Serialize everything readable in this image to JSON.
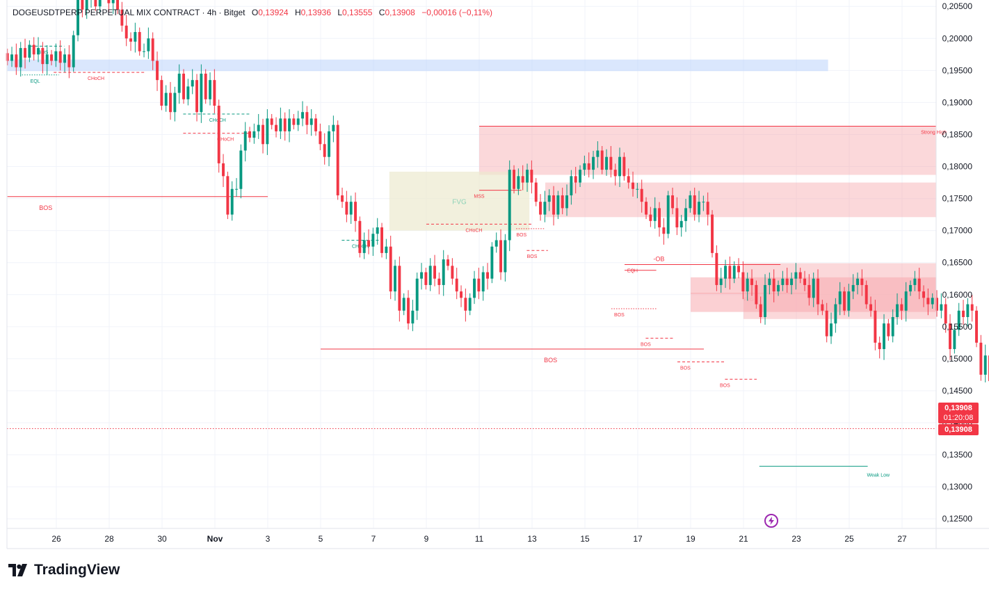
{
  "legend": {
    "symbol": "DOGEUSDTPERP PERPETUAL MIX CONTRACT · 4h · Bitget",
    "o_label": "O",
    "o": "0,13924",
    "h_label": "H",
    "h": "0,13936",
    "l_label": "L",
    "l": "0,13555",
    "c_label": "C",
    "c": "0,13908",
    "change": "−0,00016 (−0,11%)"
  },
  "price_tag": {
    "price": "0,13908",
    "countdown": "01:20:08",
    "price2": "0,13908"
  },
  "brand": {
    "name": "TradingView"
  },
  "colors": {
    "up": "#089981",
    "down": "#f23645",
    "grid": "#f0f3fa",
    "supply": "#f7a9ae",
    "fvg": "#ede9cf",
    "demand": "#bbd4fb"
  },
  "chart_data": {
    "type": "candlestick",
    "interval": "4h",
    "ylim": [
      0.1235,
      0.206
    ],
    "y_ticks": [
      "0,12500",
      "0,13000",
      "0,13500",
      "0,14000",
      "0,14500",
      "0,15000",
      "0,15500",
      "0,16000",
      "0,16500",
      "0,17000",
      "0,17500",
      "0,18000",
      "0,18500",
      "0,19000",
      "0,19500",
      "0,20000",
      "0,20500"
    ],
    "y_tick_values": [
      0.125,
      0.13,
      0.135,
      0.14,
      0.145,
      0.15,
      0.155,
      0.16,
      0.165,
      0.17,
      0.175,
      0.18,
      0.185,
      0.19,
      0.195,
      0.2,
      0.205
    ],
    "x_ticks": [
      {
        "label": "26",
        "day": 0
      },
      {
        "label": "28",
        "day": 2
      },
      {
        "label": "30",
        "day": 4
      },
      {
        "label": "Nov",
        "day": 6
      },
      {
        "label": "3",
        "day": 8
      },
      {
        "label": "5",
        "day": 10
      },
      {
        "label": "7",
        "day": 12
      },
      {
        "label": "9",
        "day": 14
      },
      {
        "label": "11",
        "day": 16
      },
      {
        "label": "13",
        "day": 18
      },
      {
        "label": "15",
        "day": 20
      },
      {
        "label": "17",
        "day": 22
      },
      {
        "label": "19",
        "day": 24
      },
      {
        "label": "21",
        "day": 26
      },
      {
        "label": "23",
        "day": 28
      },
      {
        "label": "25",
        "day": 30
      },
      {
        "label": "27",
        "day": 32
      }
    ],
    "start_day": -1.85,
    "candles_per_day": 6,
    "closes": [
      0.1965,
      0.1975,
      0.1955,
      0.1985,
      0.197,
      0.199,
      0.1975,
      0.1985,
      0.196,
      0.1975,
      0.1965,
      0.198,
      0.1962,
      0.1975,
      0.1955,
      0.2005,
      0.2065,
      0.2045,
      0.2065,
      0.2115,
      0.205,
      0.2095,
      0.2075,
      0.2055,
      0.2095,
      0.2045,
      0.202,
      0.2,
      0.1995,
      0.201,
      0.198,
      0.198,
      0.2,
      0.1965,
      0.1935,
      0.1895,
      0.1915,
      0.1885,
      0.1915,
      0.1945,
      0.1905,
      0.1925,
      0.1935,
      0.1885,
      0.1945,
      0.1905,
      0.1935,
      0.1895,
      0.1805,
      0.1785,
      0.1725,
      0.1765,
      0.1765,
      0.1825,
      0.1855,
      0.1845,
      0.1855,
      0.1865,
      0.1835,
      0.1875,
      0.1865,
      0.1855,
      0.1875,
      0.1855,
      0.1875,
      0.1865,
      0.1875,
      0.1885,
      0.1865,
      0.1875,
      0.1855,
      0.1835,
      0.1815,
      0.1855,
      0.1865,
      0.1755,
      0.1745,
      0.1725,
      0.1745,
      0.1715,
      0.1665,
      0.1685,
      0.1675,
      0.1695,
      0.1705,
      0.1665,
      0.1675,
      0.1605,
      0.1645,
      0.1575,
      0.1595,
      0.1555,
      0.1575,
      0.1625,
      0.1635,
      0.1615,
      0.1645,
      0.1625,
      0.1615,
      0.1655,
      0.1645,
      0.1625,
      0.1605,
      0.1595,
      0.1575,
      0.1595,
      0.1625,
      0.1605,
      0.1635,
      0.1625,
      0.1675,
      0.1685,
      0.1635,
      0.1685,
      0.1795,
      0.1765,
      0.1785,
      0.1775,
      0.1795,
      0.1775,
      0.1745,
      0.1725,
      0.1745,
      0.1755,
      0.1725,
      0.1755,
      0.1735,
      0.1755,
      0.1785,
      0.1775,
      0.1795,
      0.1805,
      0.1795,
      0.1815,
      0.1825,
      0.1795,
      0.1815,
      0.1795,
      0.1785,
      0.1815,
      0.1785,
      0.1775,
      0.1765,
      0.1765,
      0.1745,
      0.1725,
      0.1715,
      0.1735,
      0.1705,
      0.1695,
      0.1755,
      0.1735,
      0.1705,
      0.1715,
      0.1735,
      0.1755,
      0.1725,
      0.1745,
      0.1745,
      0.1725,
      0.1665,
      0.1615,
      0.1625,
      0.1645,
      0.1625,
      0.1645,
      0.1635,
      0.1605,
      0.1625,
      0.1615,
      0.1585,
      0.1565,
      0.1615,
      0.1625,
      0.1605,
      0.1615,
      0.1625,
      0.1615,
      0.1625,
      0.1635,
      0.1625,
      0.1615,
      0.1595,
      0.1625,
      0.1585,
      0.1575,
      0.1535,
      0.1555,
      0.1585,
      0.1605,
      0.1575,
      0.1605,
      0.1615,
      0.1625,
      0.1615,
      0.1585,
      0.1575,
      0.1525,
      0.1515,
      0.1555,
      0.1535,
      0.1565,
      0.1585,
      0.1575,
      0.1605,
      0.1615,
      0.1625,
      0.1605,
      0.1595,
      0.1585,
      0.1595,
      0.1575,
      0.1585,
      0.1555,
      0.1515,
      0.1545,
      0.1575,
      0.1565,
      0.1585,
      0.1575,
      0.1525,
      0.1475,
      0.1505,
      0.1465,
      0.1425,
      0.1395,
      0.1375,
      0.1405,
      0.1375,
      0.1415,
      0.1385,
      0.1405,
      0.1385,
      0.13908
    ],
    "zones": [
      {
        "label": "",
        "x0_day": -1.85,
        "x1_day": 29.2,
        "y0": 0.1949,
        "y1": 0.1967,
        "kind": "demand"
      },
      {
        "label": "",
        "x0_day": 16.0,
        "x1_day": 35.2,
        "y0": 0.1787,
        "y1": 0.1863,
        "kind": "supply"
      },
      {
        "label": "",
        "x0_day": 18.5,
        "x1_day": 35.2,
        "y0": 0.1721,
        "y1": 0.1775,
        "kind": "supply"
      },
      {
        "label": "FVG",
        "x0_day": 12.6,
        "x1_day": 17.9,
        "y0": 0.17,
        "y1": 0.1792,
        "kind": "fvg"
      },
      {
        "label": "",
        "x0_day": 26.0,
        "x1_day": 35.2,
        "y0": 0.1562,
        "y1": 0.1649,
        "kind": "supply"
      },
      {
        "label": "",
        "x0_day": 24.0,
        "x1_day": 35.2,
        "y0": 0.1573,
        "y1": 0.1627,
        "kind": "supply_dark"
      }
    ],
    "levels": [
      {
        "label": "Strong High",
        "x0_day": 16.0,
        "x1_day": 35.2,
        "y": 0.1863,
        "color": "#f23645",
        "style": "solid",
        "label_day": 33.2
      },
      {
        "label": "BOS",
        "x0_day": -1.85,
        "x1_day": 8.0,
        "y": 0.1753,
        "color": "#f23645",
        "style": "solid",
        "label_day": -0.4
      },
      {
        "label": "BOS",
        "x0_day": 10.0,
        "x1_day": 24.5,
        "y": 0.1515,
        "color": "#f23645",
        "style": "solid",
        "label_day": 18.7
      },
      {
        "label": "Weak Low",
        "x0_day": 26.6,
        "x1_day": 30.7,
        "y": 0.1332,
        "color": "#089981",
        "style": "solid",
        "label_day": 31.1
      },
      {
        "label": "CHoCH",
        "x0_day": -0.1,
        "x1_day": 3.4,
        "y": 0.1947,
        "color": "#f23645",
        "style": "dashed",
        "label_day": 1.5
      },
      {
        "label": "BOS",
        "x0_day": -1.0,
        "x1_day": 0.3,
        "y": 0.1988,
        "color": "#089981",
        "style": "dashed",
        "label_day": -0.5
      },
      {
        "label": "EQL",
        "x0_day": -1.3,
        "x1_day": 0.1,
        "y": 0.1943,
        "color": "#089981",
        "style": "dotted",
        "label_day": -0.8
      },
      {
        "label": "CHoCH",
        "x0_day": 4.8,
        "x1_day": 7.3,
        "y": 0.1882,
        "color": "#089981",
        "style": "dashed",
        "label_day": 6.1
      },
      {
        "label": "CHoCH",
        "x0_day": 4.8,
        "x1_day": 7.3,
        "y": 0.1852,
        "color": "#f23645",
        "style": "dashed",
        "label_day": 6.4
      },
      {
        "label": "CHoCH",
        "x0_day": 10.8,
        "x1_day": 12.3,
        "y": 0.1685,
        "color": "#089981",
        "style": "dashed",
        "label_day": 11.5
      },
      {
        "label": "CHoCH",
        "x0_day": 14.0,
        "x1_day": 18.0,
        "y": 0.171,
        "color": "#f23645",
        "style": "dashed",
        "label_day": 15.8
      },
      {
        "label": "MSS",
        "x0_day": 16.0,
        "x1_day": 17.6,
        "y": 0.1763,
        "color": "#f23645",
        "style": "solid",
        "label_day": 16.0
      },
      {
        "label": "BOS",
        "x0_day": 17.4,
        "x1_day": 18.5,
        "y": 0.1703,
        "color": "#f23645",
        "style": "dotted",
        "label_day": 17.6
      },
      {
        "label": "BOS",
        "x0_day": 17.8,
        "x1_day": 18.6,
        "y": 0.1669,
        "color": "#f23645",
        "style": "dashed",
        "label_day": 18.0
      },
      {
        "label": "EQH",
        "x0_day": 21.5,
        "x1_day": 23.5,
        "y": 0.1647,
        "color": "#f23645",
        "style": "dashed",
        "label_day": 21.8
      },
      {
        "label": "-OB",
        "x0_day": 21.5,
        "x1_day": 27.4,
        "y": 0.1647,
        "color": "#f23645",
        "style": "solid",
        "label_day": 22.8
      },
      {
        "label": "",
        "x0_day": 21.5,
        "x1_day": 22.7,
        "y": 0.1638,
        "color": "#f23645",
        "style": "solid",
        "label_day": 0
      },
      {
        "label": "FVG",
        "x0_day": 24.0,
        "x1_day": 28.5,
        "y": 0.1602,
        "color": "#f7a9ae",
        "style": "solid",
        "label_day": 26.2
      },
      {
        "label": "BOS",
        "x0_day": 21.0,
        "x1_day": 22.7,
        "y": 0.1578,
        "color": "#f23645",
        "style": "dotted",
        "label_day": 21.3
      },
      {
        "label": "BOS",
        "x0_day": 22.3,
        "x1_day": 23.4,
        "y": 0.1532,
        "color": "#f23645",
        "style": "dashed",
        "label_day": 22.3
      },
      {
        "label": "BOS",
        "x0_day": 23.5,
        "x1_day": 25.3,
        "y": 0.1495,
        "color": "#f23645",
        "style": "dashed",
        "label_day": 23.8
      },
      {
        "label": "BOS",
        "x0_day": 25.3,
        "x1_day": 26.5,
        "y": 0.1468,
        "color": "#f23645",
        "style": "dashed",
        "label_day": 25.3
      }
    ],
    "last_price": 0.13908
  }
}
